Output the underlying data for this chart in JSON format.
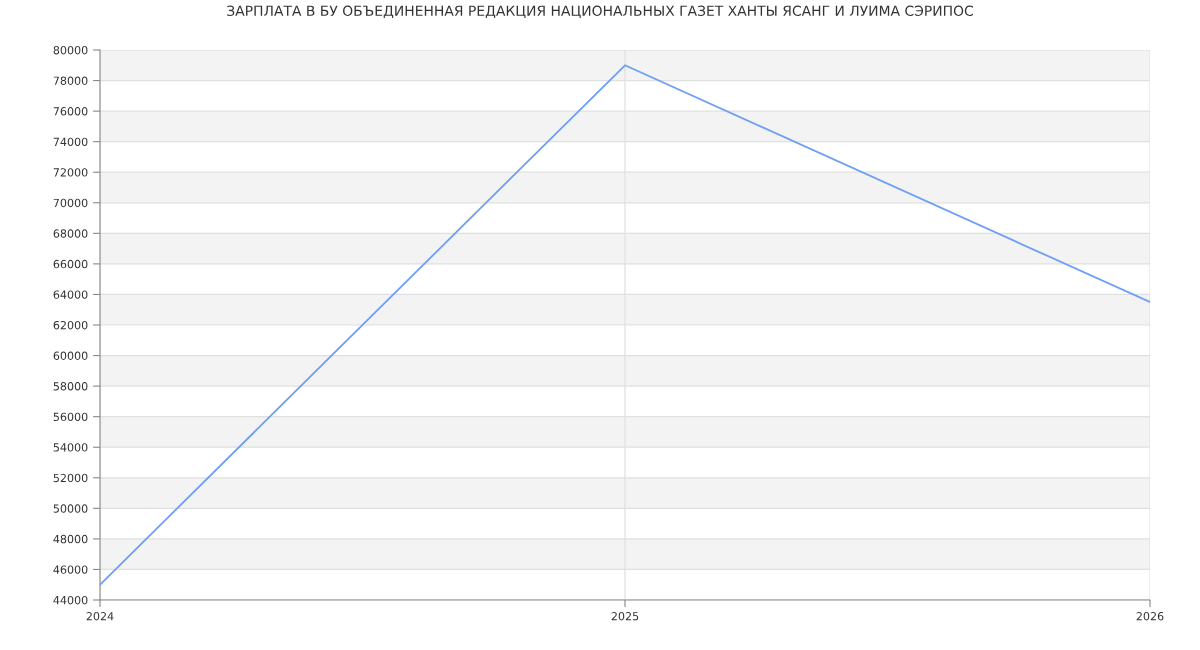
{
  "chart_data": {
    "type": "line",
    "title": "ЗАРПЛАТА В БУ ОБЪЕДИНЕННАЯ РЕДАКЦИЯ НАЦИОНАЛЬНЫХ ГАЗЕТ ХАНТЫ ЯСАНГ И ЛУИМА СЭРИПОС",
    "x": [
      2024,
      2025,
      2026
    ],
    "series": [
      {
        "color": "#6e9ff5",
        "values": [
          45000,
          79000,
          63500
        ]
      }
    ],
    "xlim": [
      2024,
      2026
    ],
    "xticks": [
      2024,
      2025,
      2026
    ],
    "ylim": [
      44000,
      80000
    ],
    "yticks": [
      44000,
      46000,
      48000,
      50000,
      52000,
      54000,
      56000,
      58000,
      60000,
      62000,
      64000,
      66000,
      68000,
      70000,
      72000,
      74000,
      76000,
      78000,
      80000
    ],
    "grid": true,
    "marker": "none",
    "line_style": "solid"
  }
}
